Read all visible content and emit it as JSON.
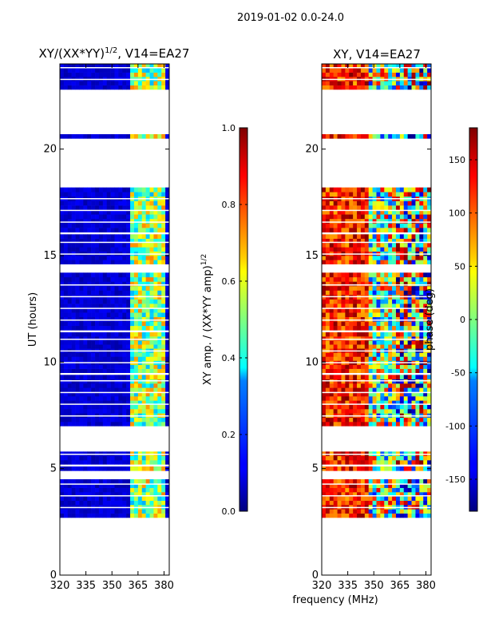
{
  "suptitle": "2019-01-02 0.0-24.0",
  "shared_xlabel": "frequency (MHz)",
  "chart_data": [
    {
      "type": "heatmap",
      "title": "XY/(XX*YY)^1/2, V14=EA27",
      "title_main": "XY/(XX*YY)",
      "title_sup": "1/2",
      "title_tail": ", V14=EA27",
      "xlabel": "frequency (MHz)",
      "ylabel": "UT (hours)",
      "xlim": [
        320,
        383
      ],
      "ylim": [
        0,
        24
      ],
      "xticks": [
        320,
        335,
        350,
        365,
        380
      ],
      "yticks": [
        0,
        5,
        10,
        15,
        20
      ],
      "colorbar": {
        "label": "XY amp. / (XX*YY amp)^1/2",
        "label_main": "XY amp. / (XX*YY amp)",
        "label_sup": "1/2",
        "range": [
          0.0,
          1.0
        ],
        "ticks": [
          "0.0",
          "0.2",
          "0.4",
          "0.6",
          "0.8",
          "1.0"
        ],
        "colormap": "jet"
      },
      "data_segments_hours": [
        [
          2.7,
          4.5
        ],
        [
          4.9,
          5.1
        ],
        [
          5.2,
          5.8
        ],
        [
          7.0,
          9.4
        ],
        [
          9.5,
          11.4
        ],
        [
          11.5,
          14.2
        ],
        [
          14.6,
          16.0
        ],
        [
          16.1,
          18.2
        ],
        [
          20.5,
          20.7
        ],
        [
          22.8,
          24.0
        ]
      ],
      "feature": "low amplitude (~0.05) at most frequencies; elevated amplitude (0.3-0.9) in the 360-380 MHz band"
    },
    {
      "type": "heatmap",
      "title": "XY, V14=EA27",
      "xlabel": "frequency (MHz)",
      "ylabel": "",
      "xlim": [
        320,
        383
      ],
      "ylim": [
        0,
        24
      ],
      "xticks": [
        320,
        335,
        350,
        365,
        380
      ],
      "yticks": [
        0,
        5,
        10,
        15,
        20
      ],
      "colorbar": {
        "label": "phase (deg)",
        "range": [
          -180,
          180
        ],
        "ticks": [
          "-150",
          "-100",
          "-50",
          "0",
          "50",
          "100",
          "150"
        ],
        "colormap": "jet"
      },
      "data_segments_hours": [
        [
          2.7,
          4.5
        ],
        [
          4.9,
          5.1
        ],
        [
          5.2,
          5.8
        ],
        [
          7.0,
          9.4
        ],
        [
          9.5,
          11.4
        ],
        [
          11.5,
          14.2
        ],
        [
          14.6,
          16.0
        ],
        [
          16.1,
          18.2
        ],
        [
          20.5,
          20.7
        ],
        [
          22.8,
          24.0
        ]
      ],
      "feature": "phase mostly 100-180 deg near 320-345 MHz, mixed -180 to 180 deg elsewhere"
    }
  ]
}
